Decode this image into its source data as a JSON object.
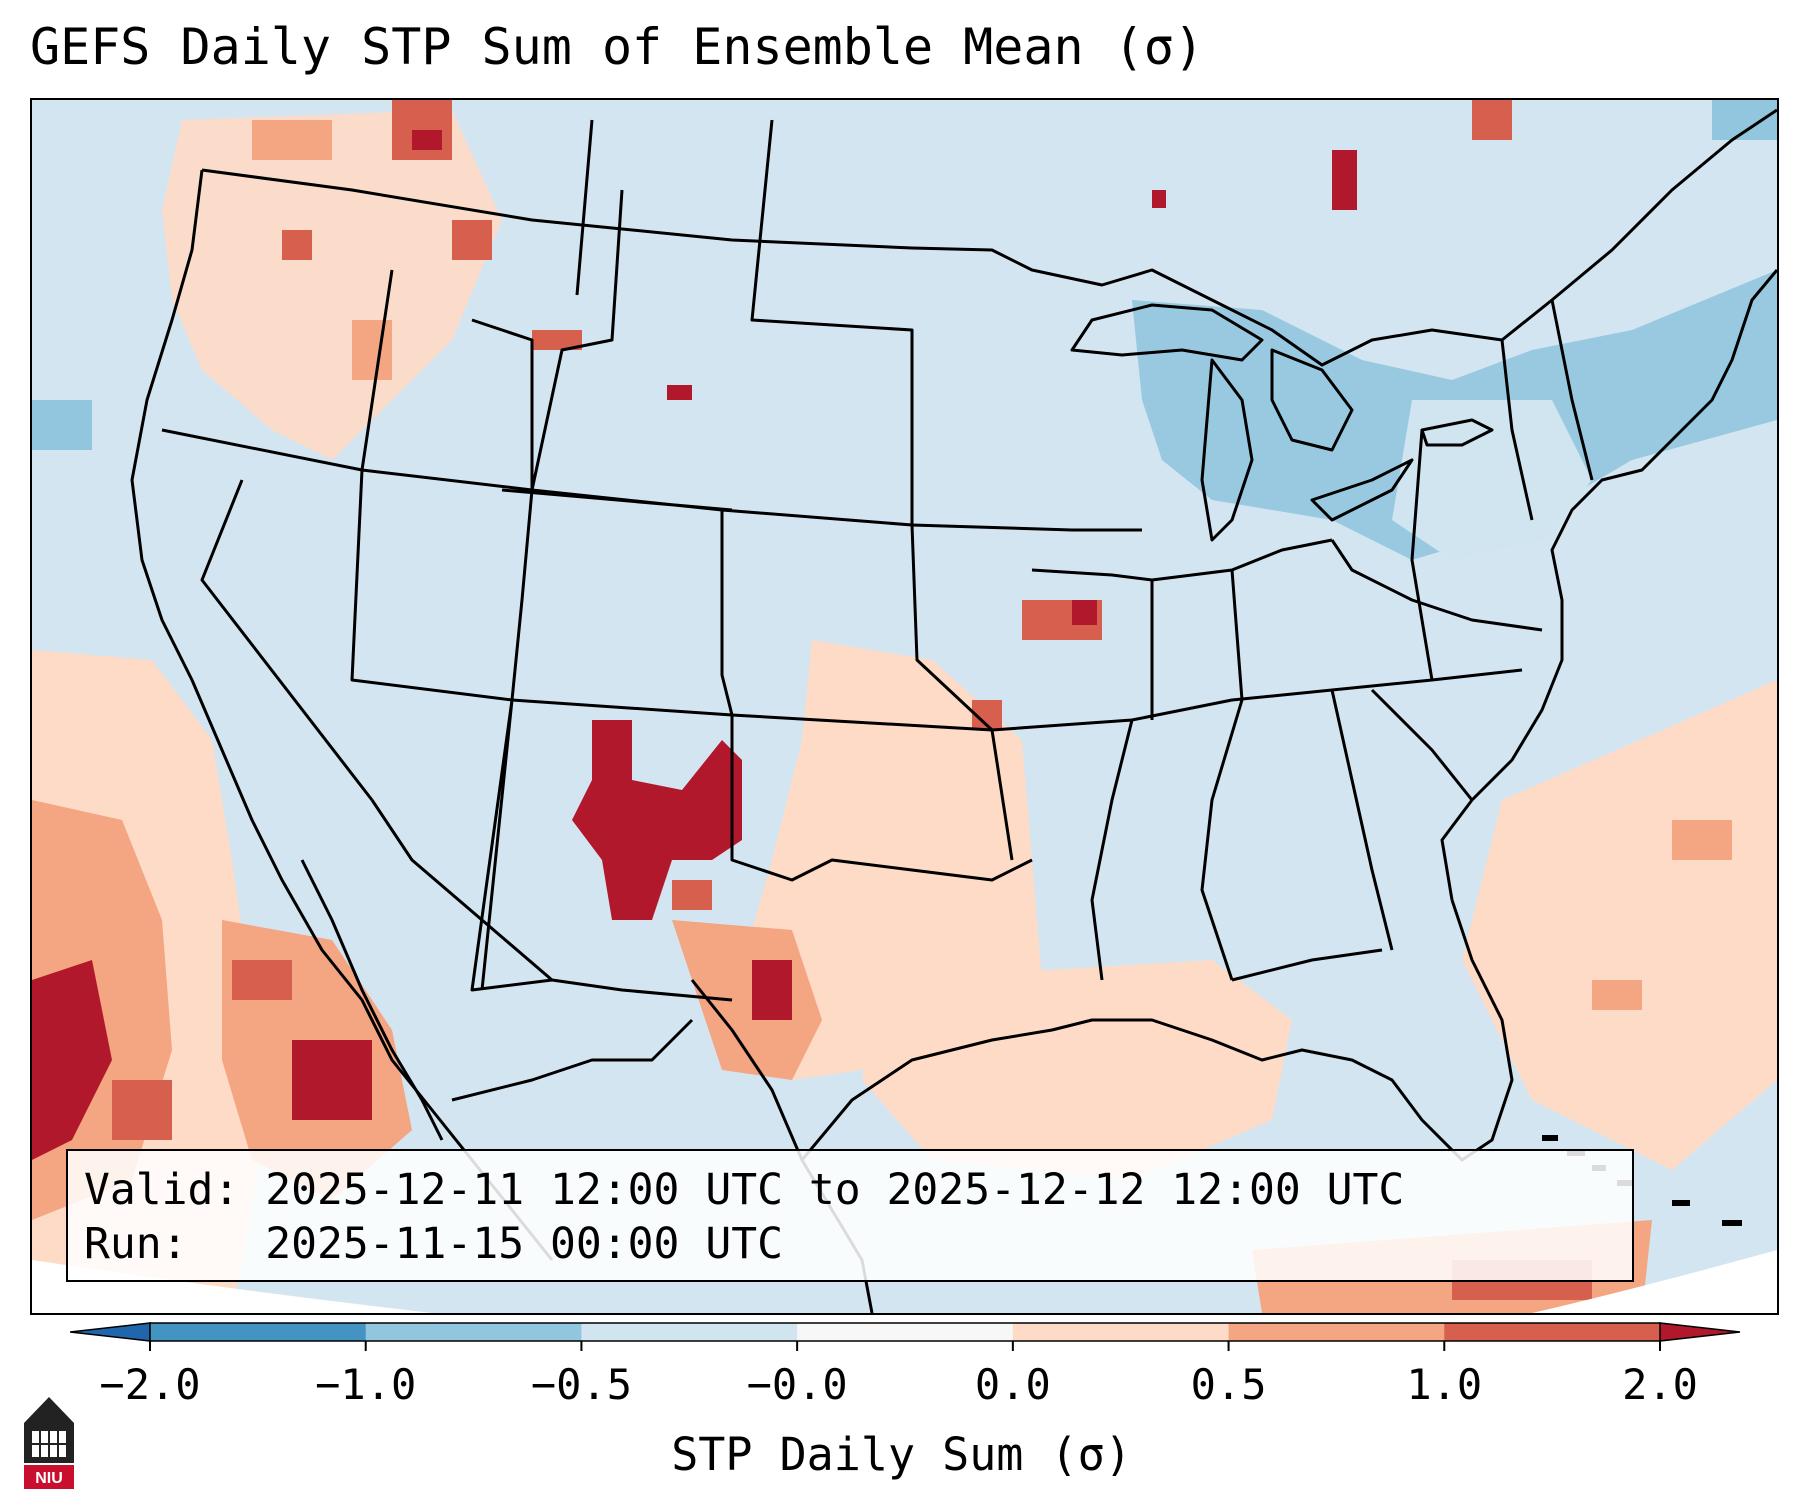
{
  "header": {
    "title": "GEFS Daily STP Sum of Ensemble Mean (σ)"
  },
  "info_box": {
    "valid_line": "Valid: 2025-12-11 12:00 UTC to 2025-12-12 12:00 UTC",
    "run_line": "Run:   2025-11-15 00:00 UTC"
  },
  "colorbar": {
    "label": "STP Daily Sum (σ)",
    "ticks": [
      "−2.0",
      "−1.0",
      "−0.5",
      "−0.0",
      "0.0",
      "0.5",
      "1.0",
      "2.0"
    ],
    "bins": [
      {
        "from": -2.0,
        "to": -1.0,
        "color": "#4393c3"
      },
      {
        "from": -1.0,
        "to": -0.5,
        "color": "#92c5de"
      },
      {
        "from": -0.5,
        "to": 0.0,
        "color": "#d1e5f0"
      },
      {
        "from": 0.0,
        "to": 0.0,
        "color": "#f7f7f7"
      },
      {
        "from": 0.0,
        "to": 0.5,
        "color": "#fddbc7"
      },
      {
        "from": 0.5,
        "to": 1.0,
        "color": "#f4a582"
      },
      {
        "from": 1.0,
        "to": 2.0,
        "color": "#d6604d"
      }
    ],
    "under_color": "#2166ac",
    "over_color": "#b2182b",
    "extend": "both"
  },
  "map": {
    "region": "Contiguous United States",
    "projection": "Lambert Conformal",
    "background_color": "#d3e5f1",
    "boundaries": [
      "coastlines",
      "country-borders",
      "state-borders"
    ]
  },
  "logo": {
    "text": "NIU",
    "icon": "university-tower-icon"
  }
}
